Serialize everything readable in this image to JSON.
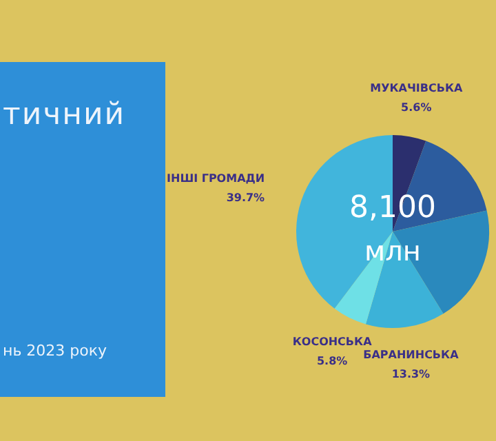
{
  "chart_data": {
    "type": "pie",
    "title": "тичний",
    "subtitle": "нь 2023 року",
    "categories": [
      "МУКАЧІВСЬКА",
      null,
      null,
      "БАРАНИНСЬКА",
      "КОСОНСЬКА",
      "ІНШІ ГРОМАДИ"
    ],
    "values": [
      5.6,
      15.9,
      19.7,
      13.3,
      5.8,
      39.7
    ],
    "value_labels": [
      "5.6%",
      null,
      null,
      "13.3%",
      "5.8%",
      "39.7%"
    ],
    "colors": [
      "#2b2f6e",
      "#2c5c9e",
      "#2a89bd",
      "#3cb2d8",
      "#6ee0e6",
      "#41b5dc"
    ],
    "annotations": [
      "8,100",
      "млн"
    ],
    "legend": false
  }
}
